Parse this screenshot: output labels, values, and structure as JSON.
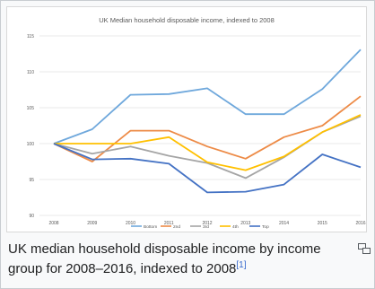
{
  "chart_data": {
    "type": "line",
    "title": "UK Median household disposable income, indexed to 2008",
    "xlabel": "",
    "ylabel": "",
    "x": [
      "2008",
      "2009",
      "2010",
      "2011",
      "2012",
      "2013",
      "2014",
      "2015",
      "2016"
    ],
    "ylim": [
      90,
      115
    ],
    "yticks": [
      90,
      95,
      100,
      105,
      110,
      115
    ],
    "grid": true,
    "legend": "bottom",
    "series": [
      {
        "name": "Bottom",
        "color": "#6fa8dc",
        "values": [
          100,
          102,
          106.8,
          106.9,
          107.7,
          104.1,
          104.1,
          107.6,
          113.1
        ]
      },
      {
        "name": "2nd",
        "color": "#ed8b47",
        "values": [
          100,
          97.5,
          101.8,
          101.8,
          99.6,
          97.9,
          100.9,
          102.5,
          106.6
        ]
      },
      {
        "name": "3rd",
        "color": "#a5a5a5",
        "values": [
          100,
          98.6,
          99.6,
          98.3,
          97.3,
          95.2,
          98.1,
          101.6,
          103.8
        ]
      },
      {
        "name": "4th",
        "color": "#ffc000",
        "values": [
          100,
          100,
          100,
          100.9,
          97.4,
          96.3,
          98.2,
          101.6,
          104
        ]
      },
      {
        "name": "Top",
        "color": "#4472c4",
        "values": [
          100,
          97.8,
          97.9,
          97.2,
          93.2,
          93.3,
          94.3,
          98.5,
          96.7
        ]
      }
    ]
  },
  "caption": {
    "text": "UK median household disposable income by income group for 2008–2016, indexed to 2008",
    "ref": "[1]"
  },
  "icons": {
    "enlarge": "magnify-icon"
  }
}
